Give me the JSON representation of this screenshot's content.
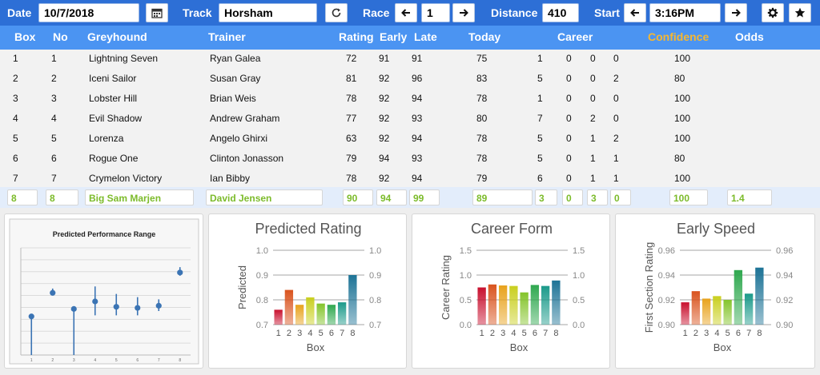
{
  "toolbar": {
    "date_label": "Date",
    "date_value": "10/7/2018",
    "track_label": "Track",
    "track_value": "Horsham",
    "race_label": "Race",
    "race_value": "1",
    "distance_label": "Distance",
    "distance_value": "410",
    "start_label": "Start",
    "start_value": "3:16PM",
    "icons": [
      "calendar-icon",
      "refresh-icon",
      "arrow-left-icon",
      "arrow-right-icon",
      "gear-icon",
      "star-icon"
    ]
  },
  "columns": {
    "box": "Box",
    "no": "No",
    "greyhound": "Greyhound",
    "trainer": "Trainer",
    "rating": "Rating",
    "early": "Early",
    "late": "Late",
    "today": "Today",
    "career": "Career",
    "confidence": "Confidence",
    "odds": "Odds"
  },
  "rows": [
    {
      "box": "1",
      "no": "1",
      "greyhound": "Lightning Seven",
      "trainer": "Ryan Galea",
      "rating": "72",
      "early": "91",
      "late": "91",
      "today": "75",
      "c1": "1",
      "c2": "0",
      "c3": "0",
      "c4": "0",
      "confidence": "100",
      "odds": ""
    },
    {
      "box": "2",
      "no": "2",
      "greyhound": "Iceni Sailor",
      "trainer": "Susan Gray",
      "rating": "81",
      "early": "92",
      "late": "96",
      "today": "83",
      "c1": "5",
      "c2": "0",
      "c3": "0",
      "c4": "2",
      "confidence": "80",
      "odds": ""
    },
    {
      "box": "3",
      "no": "3",
      "greyhound": "Lobster Hill",
      "trainer": "Brian Weis",
      "rating": "78",
      "early": "92",
      "late": "94",
      "today": "78",
      "c1": "1",
      "c2": "0",
      "c3": "0",
      "c4": "0",
      "confidence": "100",
      "odds": ""
    },
    {
      "box": "4",
      "no": "4",
      "greyhound": "Evil Shadow",
      "trainer": "Andrew Graham",
      "rating": "77",
      "early": "92",
      "late": "93",
      "today": "80",
      "c1": "7",
      "c2": "0",
      "c3": "2",
      "c4": "0",
      "confidence": "100",
      "odds": ""
    },
    {
      "box": "5",
      "no": "5",
      "greyhound": "Lorenza",
      "trainer": "Angelo Ghirxi",
      "rating": "63",
      "early": "92",
      "late": "94",
      "today": "78",
      "c1": "5",
      "c2": "0",
      "c3": "1",
      "c4": "2",
      "confidence": "100",
      "odds": ""
    },
    {
      "box": "6",
      "no": "6",
      "greyhound": "Rogue One",
      "trainer": "Clinton Jonasson",
      "rating": "79",
      "early": "94",
      "late": "93",
      "today": "78",
      "c1": "5",
      "c2": "0",
      "c3": "1",
      "c4": "1",
      "confidence": "80",
      "odds": ""
    },
    {
      "box": "7",
      "no": "7",
      "greyhound": "Crymelon Victory",
      "trainer": "Ian Bibby",
      "rating": "78",
      "early": "92",
      "late": "94",
      "today": "79",
      "c1": "6",
      "c2": "0",
      "c3": "1",
      "c4": "1",
      "confidence": "100",
      "odds": ""
    }
  ],
  "edit_row": {
    "box": "8",
    "no": "8",
    "greyhound": "Big Sam Marjen",
    "trainer": "David Jensen",
    "rating": "90",
    "early": "94",
    "late": "99",
    "today": "89",
    "c1": "3",
    "c2": "0",
    "c3": "3",
    "c4": "0",
    "confidence": "100",
    "odds": "1.4"
  },
  "colors": {
    "toolbar_bg": "#2d6fd6",
    "header_bg": "#4b94f2",
    "confidence_header": "#f5b731",
    "edit_text": "#7cbb2a",
    "bar_palette": [
      "#c8102e",
      "#d9531e",
      "#e8a21c",
      "#c9cf1f",
      "#84c42b",
      "#2fa84f",
      "#1b9a8a",
      "#1d7396"
    ]
  },
  "chart_data": [
    {
      "type": "scatter",
      "title": "Predicted Performance Range",
      "x": [
        1,
        2,
        3,
        4,
        5,
        6,
        7,
        8
      ],
      "xticks": [
        "1",
        "2",
        "3",
        "4",
        "5",
        "6",
        "7",
        "8"
      ],
      "points": [
        0.36,
        0.58,
        0.43,
        0.5,
        0.45,
        0.44,
        0.46,
        0.77
      ],
      "low": [
        0,
        0.56,
        0,
        0.37,
        0.37,
        0.37,
        0.41,
        0.74
      ],
      "high": [
        0.36,
        0.62,
        0.43,
        0.64,
        0.57,
        0.54,
        0.52,
        0.82
      ],
      "ylim": [
        0,
        1
      ]
    },
    {
      "type": "bar",
      "title": "Predicted Rating",
      "categories": [
        "1",
        "2",
        "3",
        "4",
        "5",
        "6",
        "7",
        "8"
      ],
      "values": [
        0.76,
        0.84,
        0.78,
        0.81,
        0.785,
        0.78,
        0.79,
        0.9
      ],
      "xlabel": "Box",
      "ylabel": "Predicted",
      "ylim": [
        0.7,
        1.0
      ],
      "yticks": [
        "0.7",
        "0.8",
        "0.9",
        "1.0"
      ]
    },
    {
      "type": "bar",
      "title": "Career Form",
      "categories": [
        "1",
        "2",
        "3",
        "4",
        "5",
        "6",
        "7",
        "8"
      ],
      "values": [
        0.75,
        0.81,
        0.79,
        0.78,
        0.65,
        0.8,
        0.78,
        0.89
      ],
      "xlabel": "Box",
      "ylabel": "Career Rating",
      "ylim": [
        0.0,
        1.5
      ],
      "yticks": [
        "0.0",
        "0.5",
        "1.0",
        "1.5"
      ]
    },
    {
      "type": "bar",
      "title": "Early Speed",
      "categories": [
        "1",
        "2",
        "3",
        "4",
        "5",
        "6",
        "7",
        "8"
      ],
      "values": [
        0.918,
        0.927,
        0.921,
        0.923,
        0.92,
        0.944,
        0.925,
        0.946
      ],
      "xlabel": "Box",
      "ylabel": "First Section Rating",
      "ylim": [
        0.9,
        0.96
      ],
      "yticks": [
        "0.90",
        "0.92",
        "0.94",
        "0.96"
      ]
    }
  ]
}
